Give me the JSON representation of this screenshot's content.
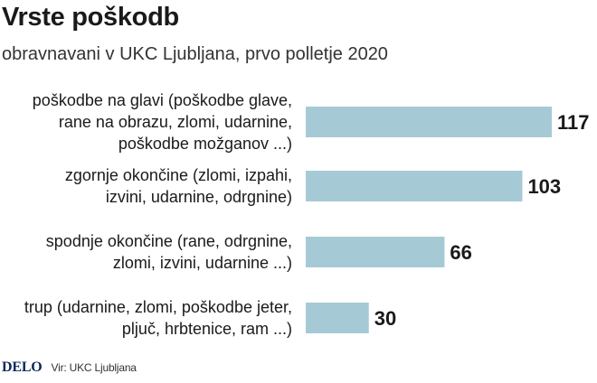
{
  "header": {
    "title": "Vrste poškodb",
    "subtitle": "obravnavani v UKC Ljubljana, prvo polletje 2020"
  },
  "footer": {
    "logo": "DELO",
    "source": "Vir: UKC Ljubljana"
  },
  "colors": {
    "bar": "#a6cad5",
    "text": "#1a1a1a"
  },
  "chart_data": {
    "type": "bar",
    "orientation": "horizontal",
    "title": "Vrste poškodb",
    "subtitle": "obravnavani v UKC Ljubljana, prvo polletje 2020",
    "categories": [
      [
        "poškodbe na glavi (poškodbe glave,",
        "rane na obrazu, zlomi, udarnine,",
        "poškodbe možganov ...)"
      ],
      [
        "zgornje okončine (zlomi, izpahi,",
        "izvini, udarnine, odrgnine)"
      ],
      [
        "spodnje okončine (rane, odrgnine,",
        "zlomi, izvini, udarnine ...)"
      ],
      [
        "trup (udarnine, zlomi, poškodbe jeter,",
        "pljuč, hrbtenice, ram ...)"
      ]
    ],
    "values": [
      117,
      103,
      66,
      30
    ],
    "xlim": [
      0,
      117
    ],
    "grid": false,
    "legend": "none"
  }
}
